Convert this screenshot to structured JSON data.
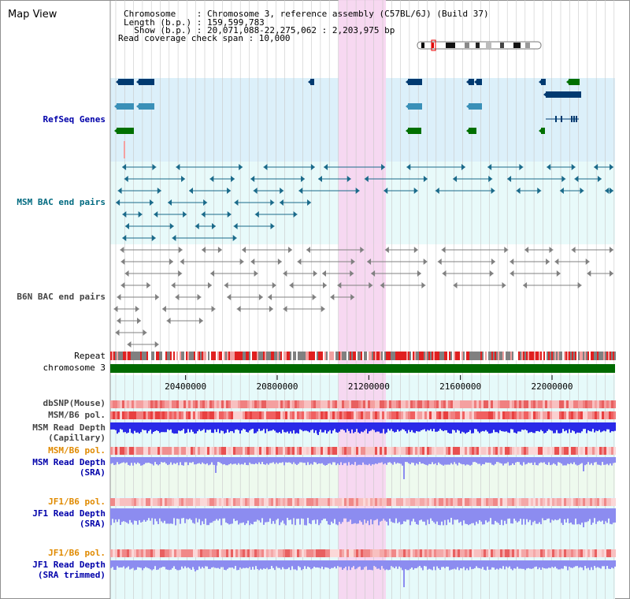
{
  "app_title": "Map View",
  "header": {
    "chromosome_line": "Chromosome    : Chromosome 3, reference assembly (C57BL/6J) (Build 37)",
    "length_line": "Length (b.p.) : 159,599,783",
    "show_line": "  Show (b.p.) : 20,071,088-22,275,062 : 2,203,975 bp",
    "coverage_line": "Read coverage check span : 10,000"
  },
  "tracks": {
    "refseq_genes": "RefSeq Genes",
    "msm_bac": "MSM BAC end pairs",
    "b6n_bac": "B6N BAC end pairs",
    "repeat": "Repeat",
    "chromosome": "chromosome 3",
    "dbsnp": "dbSNP(Mouse)",
    "msm_b6_pol": "MSM/B6 pol.",
    "msm_read_depth_cap_1": "MSM Read Depth",
    "msm_read_depth_cap_2": "(Capillary)",
    "msm_b6_pol_2": "MSM/B6 pol.",
    "msm_read_depth_sra_1": "MSM Read Depth",
    "msm_read_depth_sra_2": "(SRA)",
    "jf1_b6_pol": "JF1/B6 pol.",
    "jf1_read_depth_sra_1": "JF1 Read Depth",
    "jf1_read_depth_sra_2": "(SRA)",
    "jf1_b6_pol_2": "JF1/B6 pol.",
    "jf1_read_depth_trim_1": "JF1 Read Depth",
    "jf1_read_depth_trim_2": "(SRA trimmed)"
  },
  "axis": {
    "ticks": [
      "20400000",
      "20800000",
      "21200000",
      "21600000",
      "22000000"
    ],
    "tick_values": [
      20400000,
      20800000,
      21200000,
      21600000,
      22000000
    ],
    "range_start": 20071088,
    "range_end": 22275062
  },
  "highlight_region": {
    "start": 21050000,
    "end": 21250000
  },
  "colors": {
    "refseq_bg": "#dcf0fa",
    "msm_bac_bg": "#e8fafa",
    "lower_bg": "#e6fafa",
    "highlight": "#f7d6f0",
    "chromosome_bar": "#006a00",
    "gene_dark": "#003a70",
    "gene_mid": "#3a90b8",
    "gene_green": "#007000",
    "msm_pair": "#1a6a8a",
    "b6n_pair": "#808080",
    "depth_dark": "#2020e0",
    "depth_light": "#8c8cf0"
  }
}
